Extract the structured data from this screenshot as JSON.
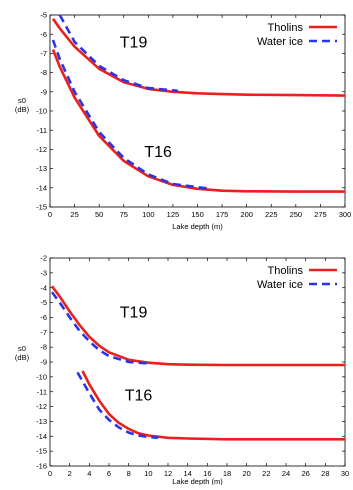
{
  "colors": {
    "tholins": "#e8201e",
    "water_ice": "#2a35e8",
    "axis": "#000000"
  },
  "chart_data": [
    {
      "type": "line",
      "title": "",
      "xlabel": "Lake depth (m)",
      "ylabel": "s0",
      "ylabel_unit": "(dB)",
      "xlim": [
        0,
        300
      ],
      "ylim": [
        -15,
        -5
      ],
      "xticks": [
        0,
        25,
        50,
        75,
        100,
        125,
        150,
        175,
        200,
        225,
        250,
        275,
        300
      ],
      "yticks": [
        -5,
        -6,
        -7,
        -8,
        -9,
        -10,
        -11,
        -12,
        -13,
        -14,
        -15
      ],
      "grid": false,
      "legend": "top-right",
      "legend_entries": [
        "Tholins",
        "Water ice"
      ],
      "annotations": [
        {
          "text": "T19",
          "x": 85,
          "y": -6.7
        },
        {
          "text": "T16",
          "x": 110,
          "y": -12.4
        }
      ],
      "series": [
        {
          "name": "Tholins",
          "group": "T19",
          "style": "solid",
          "x": [
            3,
            10,
            25,
            50,
            75,
            100,
            125,
            150,
            175,
            200,
            250,
            300
          ],
          "y": [
            -5.2,
            -5.7,
            -6.65,
            -7.8,
            -8.5,
            -8.85,
            -9.0,
            -9.08,
            -9.12,
            -9.15,
            -9.17,
            -9.2
          ]
        },
        {
          "name": "Water ice",
          "group": "T19",
          "style": "dashed",
          "x": [
            10,
            25,
            50,
            75,
            100,
            130
          ],
          "y": [
            -5.0,
            -6.4,
            -7.65,
            -8.4,
            -8.8,
            -8.95
          ]
        },
        {
          "name": "Tholins",
          "group": "T16",
          "style": "solid",
          "x": [
            3,
            10,
            25,
            50,
            75,
            100,
            125,
            150,
            175,
            200,
            250,
            300
          ],
          "y": [
            -6.8,
            -7.7,
            -9.3,
            -11.3,
            -12.6,
            -13.4,
            -13.85,
            -14.05,
            -14.15,
            -14.18,
            -14.2,
            -14.2
          ]
        },
        {
          "name": "Water ice",
          "group": "T16",
          "style": "dashed",
          "x": [
            3,
            10,
            25,
            50,
            75,
            100,
            125,
            163
          ],
          "y": [
            -6.3,
            -7.3,
            -9.0,
            -11.1,
            -12.45,
            -13.3,
            -13.8,
            -14.05
          ]
        }
      ]
    },
    {
      "type": "line",
      "title": "",
      "xlabel": "Lake depth (m)",
      "ylabel": "s0",
      "ylabel_unit": "(dB)",
      "xlim": [
        0,
        30
      ],
      "ylim": [
        -16,
        -2
      ],
      "xticks": [
        0,
        2,
        4,
        6,
        8,
        10,
        12,
        14,
        16,
        18,
        20,
        22,
        24,
        26,
        28,
        30
      ],
      "yticks": [
        -2,
        -3,
        -4,
        -5,
        -6,
        -7,
        -8,
        -9,
        -10,
        -11,
        -12,
        -13,
        -14,
        -15,
        -16
      ],
      "grid": false,
      "legend": "top-right",
      "legend_entries": [
        "Tholins",
        "Water ice"
      ],
      "annotations": [
        {
          "text": "T19",
          "x": 8.5,
          "y": -6.0
        },
        {
          "text": "T16",
          "x": 9.0,
          "y": -11.6
        }
      ],
      "series": [
        {
          "name": "Tholins",
          "group": "T19",
          "style": "solid",
          "x": [
            0.2,
            1,
            2,
            3,
            4,
            5,
            6,
            8,
            10,
            12,
            14,
            18,
            22,
            26,
            30
          ],
          "y": [
            -3.9,
            -4.6,
            -5.6,
            -6.5,
            -7.3,
            -7.9,
            -8.35,
            -8.85,
            -9.05,
            -9.15,
            -9.18,
            -9.2,
            -9.2,
            -9.2,
            -9.2
          ]
        },
        {
          "name": "Water ice",
          "group": "T19",
          "style": "dashed",
          "x": [
            0.2,
            1,
            2,
            3,
            4,
            5,
            6,
            8,
            10
          ],
          "y": [
            -4.3,
            -5.0,
            -6.0,
            -6.9,
            -7.6,
            -8.2,
            -8.6,
            -9.0,
            -9.1
          ]
        },
        {
          "name": "Tholins",
          "group": "T16",
          "style": "solid",
          "x": [
            3.3,
            4,
            5,
            6,
            7,
            8,
            9,
            10,
            12,
            14,
            18,
            22,
            26,
            30
          ],
          "y": [
            -9.6,
            -10.5,
            -11.6,
            -12.5,
            -13.1,
            -13.5,
            -13.8,
            -13.95,
            -14.1,
            -14.15,
            -14.2,
            -14.2,
            -14.2,
            -14.2
          ]
        },
        {
          "name": "Water ice",
          "group": "T16",
          "style": "dashed",
          "x": [
            2.8,
            4,
            5,
            6,
            7,
            8,
            9,
            10,
            11
          ],
          "y": [
            -9.7,
            -11.1,
            -12.2,
            -12.9,
            -13.4,
            -13.75,
            -13.95,
            -14.05,
            -14.1
          ]
        }
      ]
    }
  ]
}
